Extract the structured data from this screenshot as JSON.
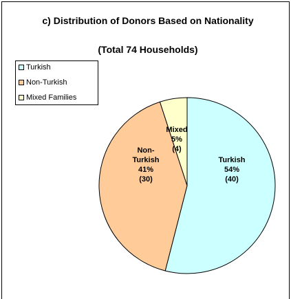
{
  "chart_data": {
    "type": "pie",
    "title": "c) Distribution of Donors Based on Nationality",
    "subtitle": "(Total 74 Households)",
    "categories": [
      "Turkish",
      "Non-Turkish",
      "Mixed Families"
    ],
    "slice_names": [
      "Turkish",
      "Non-Turkish",
      "Mixed"
    ],
    "values": [
      54,
      41,
      5
    ],
    "value_labels": [
      "54%",
      "41%",
      "5%"
    ],
    "counts": [
      40,
      30,
      4
    ],
    "count_labels": [
      "(40)",
      "(30)",
      "(4)"
    ],
    "colors": [
      "#ccffff",
      "#ffcc99",
      "#ffffcc"
    ],
    "legend": "top-left"
  }
}
